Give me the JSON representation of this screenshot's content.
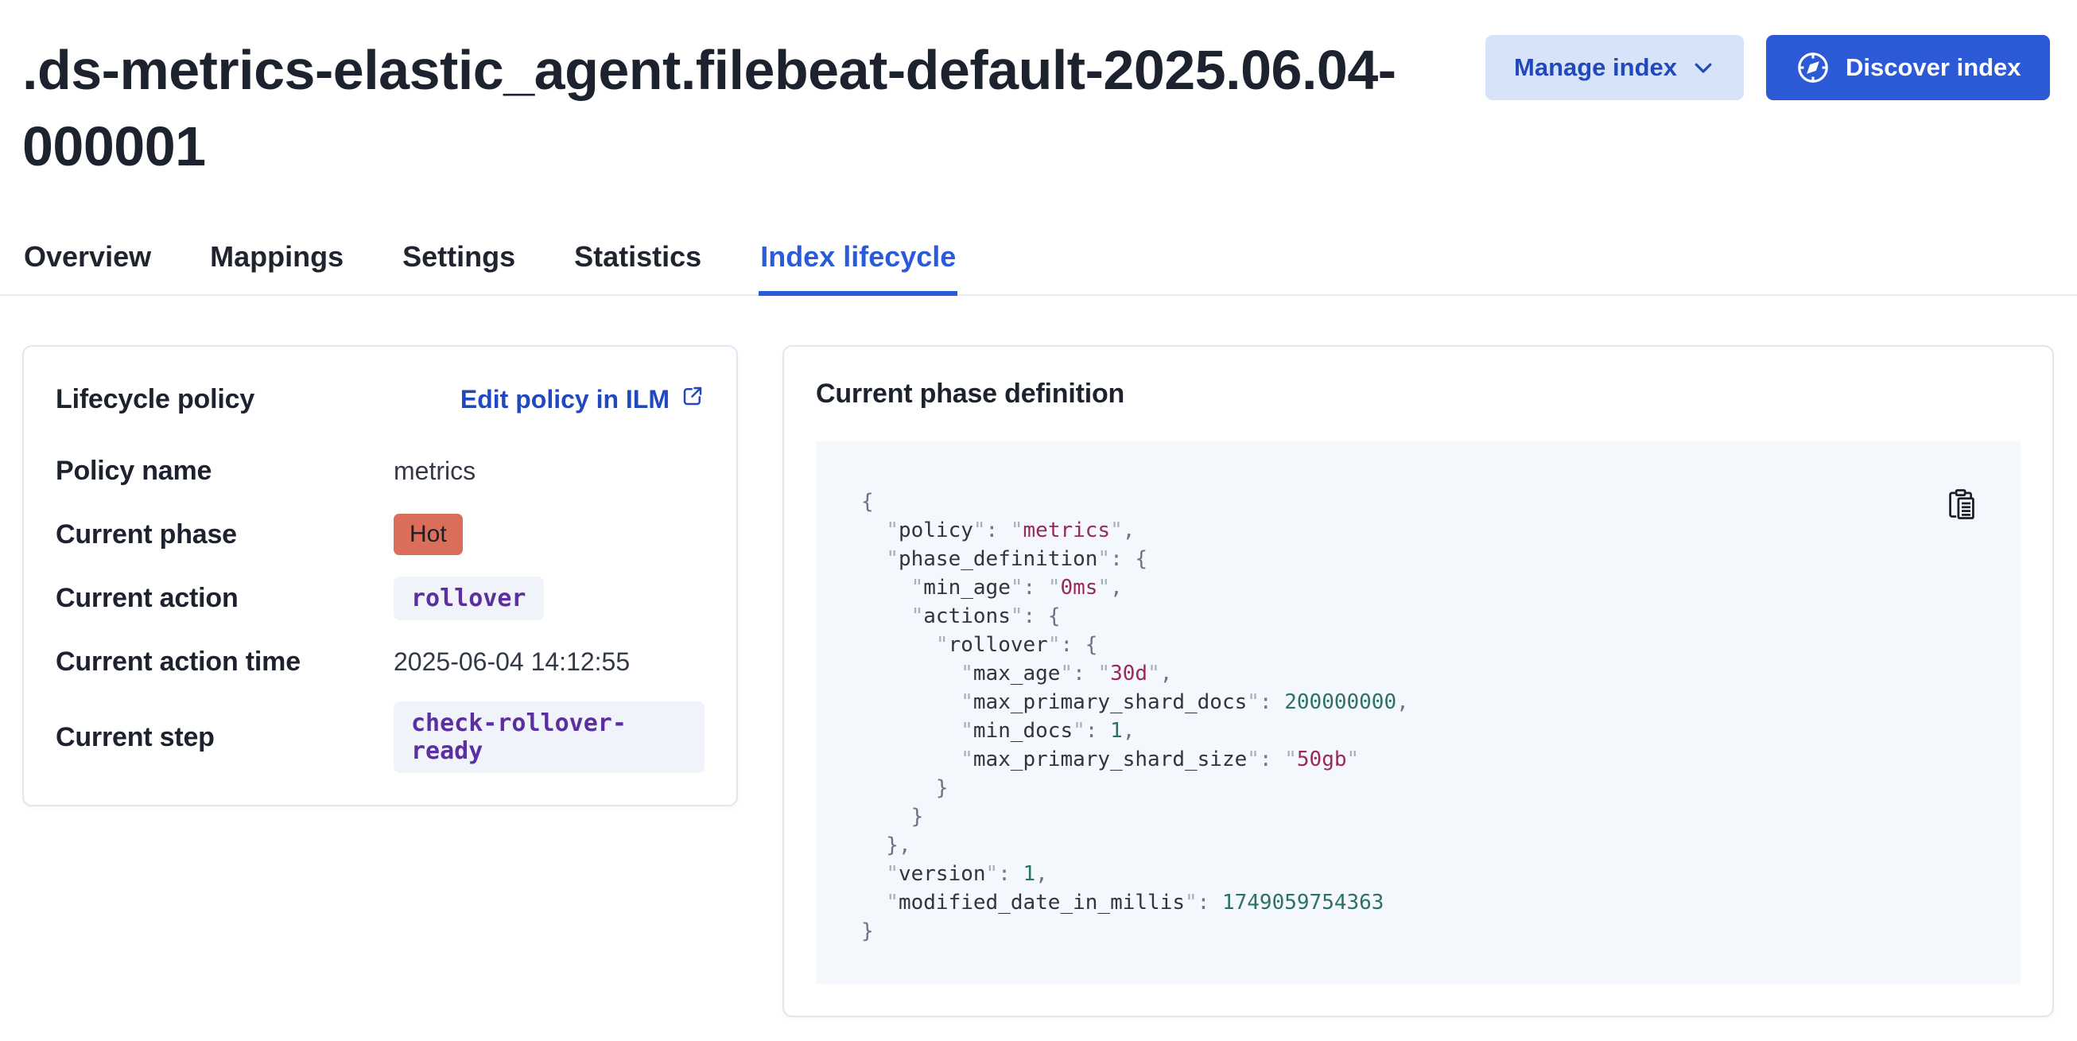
{
  "page": {
    "title": ".ds-metrics-elastic_agent.filebeat-default-2025.06.04-000001"
  },
  "header": {
    "manage_button": {
      "label": "Manage index",
      "icon": "chevron-down-icon"
    },
    "discover_button": {
      "label": "Discover index",
      "icon": "compass-icon"
    }
  },
  "tabs": [
    {
      "label": "Overview",
      "active": false
    },
    {
      "label": "Mappings",
      "active": false
    },
    {
      "label": "Settings",
      "active": false
    },
    {
      "label": "Statistics",
      "active": false
    },
    {
      "label": "Index lifecycle",
      "active": true
    }
  ],
  "lifecycle_panel": {
    "title": "Lifecycle policy",
    "edit_link_label": "Edit policy in ILM",
    "edit_link_icon": "external-link-icon",
    "rows": {
      "policy_name": {
        "label": "Policy name",
        "value": "metrics"
      },
      "current_phase": {
        "label": "Current phase",
        "value": "Hot"
      },
      "current_action": {
        "label": "Current action",
        "value": "rollover"
      },
      "current_action_time": {
        "label": "Current action time",
        "value": "2025-06-04 14:12:55"
      },
      "current_step": {
        "label": "Current step",
        "value": "check-rollover-ready"
      }
    }
  },
  "phase_panel": {
    "title": "Current phase definition",
    "copy_icon": "clipboard-icon",
    "code_lines": [
      [
        {
          "t": "{",
          "y": "pun"
        }
      ],
      [
        {
          "t": "  ",
          "y": "pun"
        },
        {
          "t": "\"",
          "y": "q"
        },
        {
          "t": "policy",
          "y": "key"
        },
        {
          "t": "\"",
          "y": "q"
        },
        {
          "t": ": ",
          "y": "pun"
        },
        {
          "t": "\"",
          "y": "q"
        },
        {
          "t": "metrics",
          "y": "str"
        },
        {
          "t": "\"",
          "y": "q"
        },
        {
          "t": ",",
          "y": "pun"
        }
      ],
      [
        {
          "t": "  ",
          "y": "pun"
        },
        {
          "t": "\"",
          "y": "q"
        },
        {
          "t": "phase_definition",
          "y": "key"
        },
        {
          "t": "\"",
          "y": "q"
        },
        {
          "t": ": ",
          "y": "pun"
        },
        {
          "t": "{",
          "y": "pun"
        }
      ],
      [
        {
          "t": "    ",
          "y": "pun"
        },
        {
          "t": "\"",
          "y": "q"
        },
        {
          "t": "min_age",
          "y": "key"
        },
        {
          "t": "\"",
          "y": "q"
        },
        {
          "t": ": ",
          "y": "pun"
        },
        {
          "t": "\"",
          "y": "q"
        },
        {
          "t": "0ms",
          "y": "str"
        },
        {
          "t": "\"",
          "y": "q"
        },
        {
          "t": ",",
          "y": "pun"
        }
      ],
      [
        {
          "t": "    ",
          "y": "pun"
        },
        {
          "t": "\"",
          "y": "q"
        },
        {
          "t": "actions",
          "y": "key"
        },
        {
          "t": "\"",
          "y": "q"
        },
        {
          "t": ": ",
          "y": "pun"
        },
        {
          "t": "{",
          "y": "pun"
        }
      ],
      [
        {
          "t": "      ",
          "y": "pun"
        },
        {
          "t": "\"",
          "y": "q"
        },
        {
          "t": "rollover",
          "y": "key"
        },
        {
          "t": "\"",
          "y": "q"
        },
        {
          "t": ": ",
          "y": "pun"
        },
        {
          "t": "{",
          "y": "pun"
        }
      ],
      [
        {
          "t": "        ",
          "y": "pun"
        },
        {
          "t": "\"",
          "y": "q"
        },
        {
          "t": "max_age",
          "y": "key"
        },
        {
          "t": "\"",
          "y": "q"
        },
        {
          "t": ": ",
          "y": "pun"
        },
        {
          "t": "\"",
          "y": "q"
        },
        {
          "t": "30d",
          "y": "str"
        },
        {
          "t": "\"",
          "y": "q"
        },
        {
          "t": ",",
          "y": "pun"
        }
      ],
      [
        {
          "t": "        ",
          "y": "pun"
        },
        {
          "t": "\"",
          "y": "q"
        },
        {
          "t": "max_primary_shard_docs",
          "y": "key"
        },
        {
          "t": "\"",
          "y": "q"
        },
        {
          "t": ": ",
          "y": "pun"
        },
        {
          "t": "200000000",
          "y": "num"
        },
        {
          "t": ",",
          "y": "pun"
        }
      ],
      [
        {
          "t": "        ",
          "y": "pun"
        },
        {
          "t": "\"",
          "y": "q"
        },
        {
          "t": "min_docs",
          "y": "key"
        },
        {
          "t": "\"",
          "y": "q"
        },
        {
          "t": ": ",
          "y": "pun"
        },
        {
          "t": "1",
          "y": "num"
        },
        {
          "t": ",",
          "y": "pun"
        }
      ],
      [
        {
          "t": "        ",
          "y": "pun"
        },
        {
          "t": "\"",
          "y": "q"
        },
        {
          "t": "max_primary_shard_size",
          "y": "key"
        },
        {
          "t": "\"",
          "y": "q"
        },
        {
          "t": ": ",
          "y": "pun"
        },
        {
          "t": "\"",
          "y": "q"
        },
        {
          "t": "50gb",
          "y": "str"
        },
        {
          "t": "\"",
          "y": "q"
        }
      ],
      [
        {
          "t": "      }",
          "y": "pun"
        }
      ],
      [
        {
          "t": "    }",
          "y": "pun"
        }
      ],
      [
        {
          "t": "  },",
          "y": "pun"
        }
      ],
      [
        {
          "t": "  ",
          "y": "pun"
        },
        {
          "t": "\"",
          "y": "q"
        },
        {
          "t": "version",
          "y": "key"
        },
        {
          "t": "\"",
          "y": "q"
        },
        {
          "t": ": ",
          "y": "pun"
        },
        {
          "t": "1",
          "y": "num"
        },
        {
          "t": ",",
          "y": "pun"
        }
      ],
      [
        {
          "t": "  ",
          "y": "pun"
        },
        {
          "t": "\"",
          "y": "q"
        },
        {
          "t": "modified_date_in_millis",
          "y": "key"
        },
        {
          "t": "\"",
          "y": "q"
        },
        {
          "t": ": ",
          "y": "pun"
        },
        {
          "t": "1749059754363",
          "y": "num"
        }
      ],
      [
        {
          "t": "}",
          "y": "pun"
        }
      ]
    ]
  },
  "colors": {
    "title_text": "#1c222e",
    "primary_button_fill": "#2c5ad6",
    "light_button_bg": "#d7e3f9",
    "link_blue": "#2248bd",
    "active_tab_blue": "#2a5bd8",
    "hot_badge_bg": "#db6e5a",
    "code_badge_bg": "#f0f3fa",
    "code_badge_text": "#5b2ea2",
    "code_block_bg": "#f4f7fb",
    "json_string": "#97295c",
    "json_number": "#2b7266",
    "panel_border": "#e1e6f0"
  }
}
